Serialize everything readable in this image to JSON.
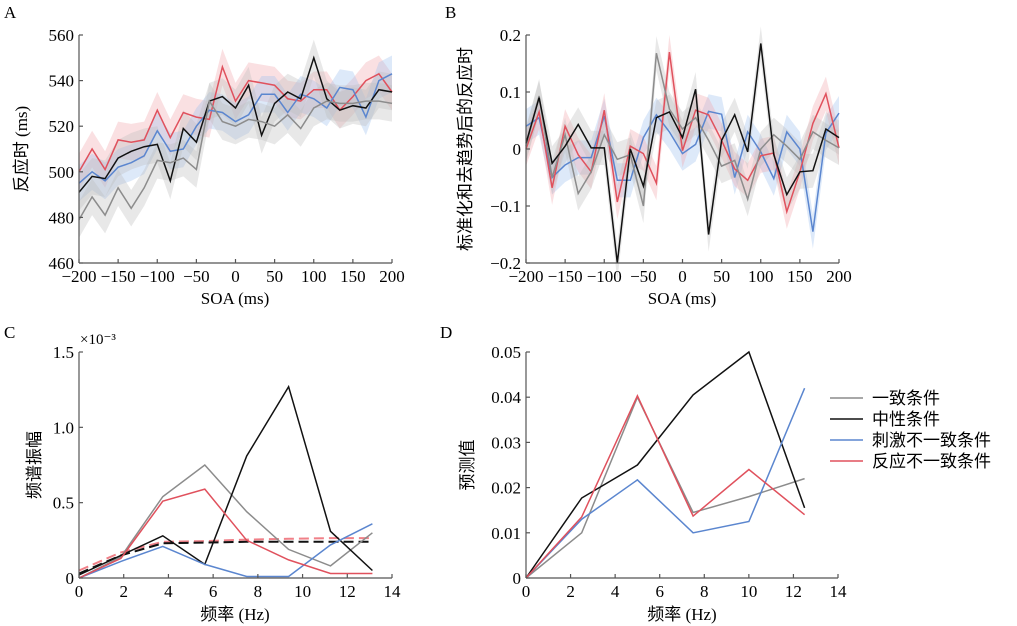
{
  "colors": {
    "consistent": "#8c8c8c",
    "neutral": "#111111",
    "stimulus_incongruent": "#5b86cf",
    "response_incongruent": "#e0515d"
  },
  "legend": {
    "entries": [
      {
        "key": "consistent",
        "label": "一致条件"
      },
      {
        "key": "neutral",
        "label": "中性条件"
      },
      {
        "key": "stimulus_incongruent",
        "label": "刺激不一致条件"
      },
      {
        "key": "response_incongruent",
        "label": "反应不一致条件"
      }
    ]
  },
  "chart_data": [
    {
      "panel": "A",
      "type": "line",
      "title": "",
      "xlabel": "SOA (ms)",
      "ylabel": "反应时 (ms)",
      "xlim": [
        -200,
        200
      ],
      "ylim": [
        460,
        560
      ],
      "xticks": [
        -200,
        -150,
        -100,
        -50,
        0,
        50,
        100,
        150,
        200
      ],
      "yticks": [
        460,
        480,
        500,
        520,
        540,
        560
      ],
      "shaded_error": true,
      "error_halfwidth": 8,
      "x": [
        -200,
        -183.3,
        -166.7,
        -150,
        -133.3,
        -116.7,
        -100,
        -83.3,
        -66.7,
        -50,
        -33.3,
        -16.7,
        0,
        16.7,
        33.3,
        50,
        66.7,
        83.3,
        100,
        116.7,
        133.3,
        150,
        166.7,
        183.3,
        200
      ],
      "series": [
        {
          "key": "response_incongruent",
          "name": "反应不一致条件",
          "values": [
            500,
            510,
            501,
            514,
            513,
            514,
            527,
            515,
            526,
            524,
            523,
            546,
            531,
            540,
            539,
            538,
            532,
            531,
            536,
            536,
            527,
            533,
            540,
            543,
            535
          ]
        },
        {
          "key": "stimulus_incongruent",
          "name": "刺激不一致条件",
          "values": [
            495,
            500,
            496,
            502,
            504,
            507,
            518,
            509,
            510,
            520,
            527,
            526,
            522,
            525,
            534,
            534,
            526,
            534,
            532,
            528,
            537,
            536,
            524,
            540,
            543
          ]
        },
        {
          "key": "neutral",
          "name": "中性条件",
          "values": [
            491,
            498,
            497,
            506,
            509,
            511,
            512,
            496,
            519,
            513,
            531,
            533,
            528,
            538,
            516,
            530,
            535,
            532,
            550,
            532,
            527,
            529,
            528,
            536,
            535
          ]
        },
        {
          "key": "consistent",
          "name": "一致条件",
          "values": [
            479,
            489,
            481,
            493,
            484,
            493,
            505,
            504,
            506,
            501,
            531,
            522,
            520,
            523,
            522,
            520,
            525,
            519,
            528,
            531,
            530,
            530,
            531,
            531,
            530
          ]
        }
      ]
    },
    {
      "panel": "B",
      "type": "line",
      "title": "",
      "xlabel": "SOA (ms)",
      "ylabel": "标准化和去趋势后的反应时",
      "xlim": [
        -200,
        200
      ],
      "ylim": [
        -0.2,
        0.2
      ],
      "xticks": [
        -200,
        -150,
        -100,
        -50,
        0,
        50,
        100,
        150,
        200
      ],
      "yticks": [
        -0.2,
        -0.1,
        0,
        0.1,
        0.2
      ],
      "ytick_labels": [
        "−0.2",
        "−0.1",
        "0",
        "0.1",
        "0.2"
      ],
      "shaded_error": true,
      "error_halfwidth": 0.03,
      "x": [
        -200,
        -183.3,
        -166.7,
        -150,
        -133.3,
        -116.7,
        -100,
        -83.3,
        -66.7,
        -50,
        -33.3,
        -16.7,
        0,
        16.7,
        33.3,
        50,
        66.7,
        83.3,
        100,
        116.7,
        133.3,
        150,
        166.7,
        183.3,
        200
      ],
      "series": [
        {
          "key": "stimulus_incongruent",
          "name": "刺激不一致条件",
          "values": [
            0.04,
            0.055,
            -0.05,
            -0.028,
            -0.015,
            -0.015,
            0.058,
            -0.055,
            -0.055,
            0.02,
            0.06,
            0.03,
            -0.008,
            0.008,
            0.066,
            0.061,
            -0.05,
            0.03,
            -0.005,
            -0.052,
            0.03,
            0.0,
            -0.145,
            0.028,
            0.063
          ]
        },
        {
          "key": "response_incongruent",
          "name": "反应不一致条件",
          "values": [
            0.0,
            0.065,
            -0.068,
            0.04,
            -0.01,
            -0.04,
            0.068,
            -0.093,
            0.005,
            -0.008,
            -0.06,
            0.17,
            -0.003,
            0.068,
            0.06,
            0.015,
            -0.035,
            -0.055,
            -0.012,
            -0.007,
            -0.11,
            -0.04,
            0.045,
            0.097,
            0.002
          ]
        },
        {
          "key": "consistent",
          "name": "一致条件",
          "values": [
            0.005,
            0.093,
            -0.05,
            0.025,
            -0.078,
            -0.04,
            0.025,
            -0.018,
            -0.01,
            -0.1,
            0.168,
            0.07,
            0.035,
            0.055,
            0.015,
            -0.03,
            -0.02,
            -0.088,
            0.0,
            0.025,
            0.005,
            -0.018,
            0.03,
            0.015,
            0.002
          ]
        },
        {
          "key": "neutral",
          "name": "中性条件",
          "values": [
            0.01,
            0.09,
            -0.025,
            0.005,
            0.043,
            0.002,
            0.002,
            -0.2,
            0.0,
            -0.065,
            0.055,
            0.065,
            0.02,
            0.105,
            -0.15,
            0.015,
            0.06,
            -0.005,
            0.185,
            -0.01,
            -0.08,
            -0.04,
            -0.038,
            0.035,
            0.02
          ]
        }
      ]
    },
    {
      "panel": "C",
      "type": "line",
      "title": "",
      "xlabel": "频率 (Hz)",
      "ylabel": "频谱振幅",
      "y_multiplier_label": "×10⁻³",
      "xlim": [
        0,
        14
      ],
      "ylim": [
        0,
        1.5
      ],
      "xticks": [
        0,
        2,
        4,
        6,
        8,
        10,
        12,
        14
      ],
      "yticks": [
        0,
        0.5,
        1.0,
        1.5
      ],
      "ytick_labels": [
        "0",
        "0.5",
        "1.0",
        "1.5"
      ],
      "x": [
        0,
        1.875,
        3.75,
        5.625,
        7.5,
        9.375,
        11.25,
        13.125
      ],
      "series": [
        {
          "key": "consistent",
          "name": "一致条件",
          "values": [
            0.0,
            0.14,
            0.54,
            0.75,
            0.44,
            0.19,
            0.08,
            0.3
          ]
        },
        {
          "key": "neutral",
          "name": "中性条件",
          "values": [
            0.02,
            0.15,
            0.28,
            0.09,
            0.81,
            1.27,
            0.31,
            0.05
          ]
        },
        {
          "key": "stimulus_incongruent",
          "name": "刺激不一致条件",
          "values": [
            0.0,
            0.11,
            0.21,
            0.09,
            0.01,
            0.01,
            0.22,
            0.36
          ]
        },
        {
          "key": "response_incongruent",
          "name": "反应不一致条件",
          "values": [
            0.0,
            0.13,
            0.51,
            0.59,
            0.25,
            0.12,
            0.03,
            0.03
          ]
        }
      ],
      "threshold_series": [
        {
          "key": "response_incongruent",
          "name": "反应不一致条件阈值",
          "dashed": true,
          "x": [
            0,
            1.875,
            3.75,
            5.625,
            7.5,
            9.375,
            11.25,
            13.125
          ],
          "values": [
            0.05,
            0.17,
            0.24,
            0.245,
            0.255,
            0.26,
            0.265,
            0.265
          ]
        },
        {
          "key": "neutral",
          "name": "中性条件阈值",
          "dashed": true,
          "x": [
            0,
            1.875,
            3.75,
            5.625,
            7.5,
            9.375,
            11.25,
            13.125
          ],
          "values": [
            0.03,
            0.15,
            0.23,
            0.235,
            0.24,
            0.24,
            0.24,
            0.24
          ]
        }
      ]
    },
    {
      "panel": "D",
      "type": "line",
      "title": "",
      "xlabel": "频率 (Hz)",
      "ylabel": "预测值",
      "xlim": [
        0,
        14
      ],
      "ylim": [
        0,
        0.05
      ],
      "xticks": [
        0,
        2,
        4,
        6,
        8,
        10,
        12,
        14
      ],
      "yticks": [
        0,
        0.01,
        0.02,
        0.03,
        0.04,
        0.05
      ],
      "ytick_labels": [
        "0",
        "0.01",
        "0.02",
        "0.03",
        "0.04",
        "0.05"
      ],
      "x": [
        0,
        2.5,
        5,
        7.5,
        10,
        12.5
      ],
      "series": [
        {
          "key": "consistent",
          "name": "一致条件",
          "values": [
            0,
            0.01,
            0.04,
            0.0145,
            0.018,
            0.022
          ]
        },
        {
          "key": "neutral",
          "name": "中性条件",
          "values": [
            0,
            0.0177,
            0.025,
            0.0405,
            0.05,
            0.0155
          ]
        },
        {
          "key": "stimulus_incongruent",
          "name": "刺激不一致条件",
          "values": [
            0,
            0.013,
            0.0217,
            0.01,
            0.0125,
            0.042
          ]
        },
        {
          "key": "response_incongruent",
          "name": "反应不一致条件",
          "values": [
            0,
            0.0135,
            0.0403,
            0.0137,
            0.024,
            0.014
          ]
        }
      ]
    }
  ]
}
